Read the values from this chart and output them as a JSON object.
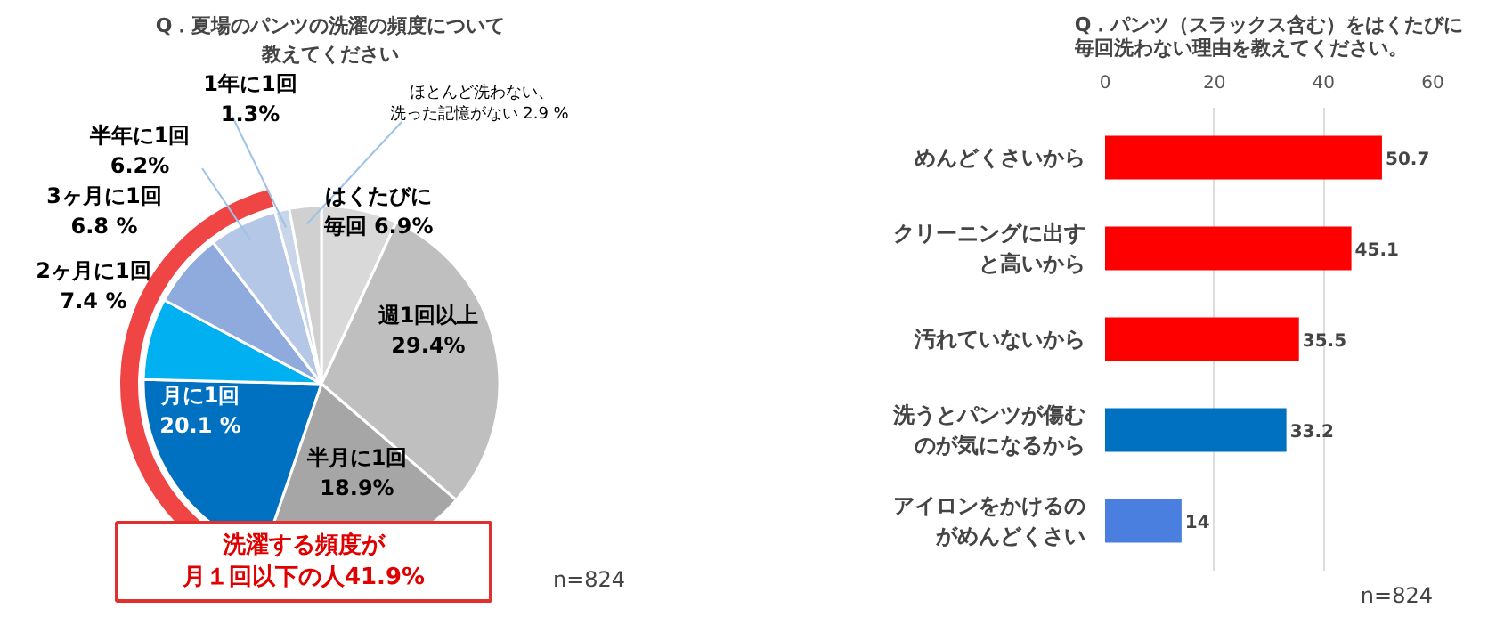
{
  "chart_data": [
    {
      "type": "pie",
      "title": "Q．夏場のパンツの洗濯の頻度について教えてください",
      "categories": [
        "はくたびに毎回",
        "週1回以上",
        "半月に1回",
        "月に1回",
        "2ヶ月に1回",
        "3ヶ月に1回",
        "半年に1回",
        "1年に1回",
        "ほとんど洗わない、洗った記憶がない"
      ],
      "values": [
        6.9,
        29.4,
        18.9,
        20.1,
        7.4,
        6.8,
        6.2,
        1.3,
        2.9
      ],
      "value_labels": [
        "6.9%",
        "29.4%",
        "18.9%",
        "20.1 %",
        "7.4 %",
        "6.8 %",
        "6.2%",
        "1.3%",
        "2.9 %"
      ],
      "colors": [
        "#d9d9d9",
        "#bfbfbf",
        "#a6a6a6",
        "#0070c0",
        "#00b0f0",
        "#8faadc",
        "#b4c7e7",
        "#c9d6ea",
        "#d0d0d0"
      ],
      "annotations": [
        "洗濯する頻度が月１回以下の人41.9%",
        "n=824"
      ]
    },
    {
      "type": "bar",
      "orientation": "horizontal",
      "title": "Q．パンツ（スラックス含む）をはくたびに毎回洗わない理由を教えてください。",
      "categories": [
        "めんどくさいから",
        "クリーニングに出すと高いから",
        "汚れていないから",
        "洗うとパンツが傷むのが気になるから",
        "アイロンをかけるのがめんどくさい"
      ],
      "values": [
        50.7,
        45.1,
        35.5,
        33.2,
        14
      ],
      "colors": [
        "#ff0000",
        "#ff0000",
        "#ff0000",
        "#0070c0",
        "#4a7fe0"
      ],
      "xlim": [
        0,
        60
      ],
      "xticks": [
        0,
        20,
        40,
        60
      ],
      "grid": "x",
      "data_labels": true,
      "annotations": [
        "n=824"
      ]
    }
  ]
}
